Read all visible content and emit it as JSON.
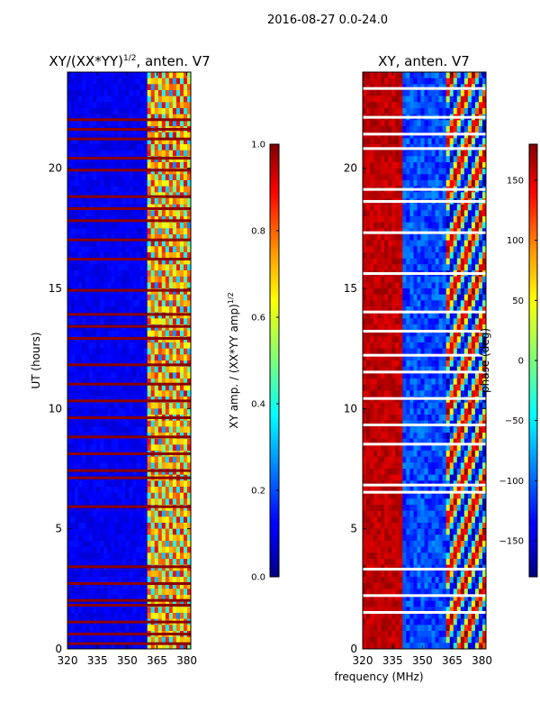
{
  "figure_title": "2016-08-27 0.0-24.0",
  "xlabel": "frequency (MHz)",
  "chart_data": [
    {
      "type": "heatmap",
      "title_main": "XY/(XX*YY)",
      "title_sup": "1/2",
      "title_rest": ", anten. V7",
      "ylabel": "UT (hours)",
      "xlim": [
        320,
        382
      ],
      "ylim": [
        0,
        24
      ],
      "x_ticks": [
        320,
        335,
        350,
        365,
        380
      ],
      "y_ticks": [
        0,
        5,
        10,
        15,
        20
      ],
      "colorbar": {
        "label_main": "XY amp. / (XX*YY amp)",
        "label_sup": "1/2",
        "range": [
          0.0,
          1.0
        ],
        "ticks": [
          "0.0",
          "0.2",
          "0.4",
          "0.6",
          "0.8",
          "1.0"
        ]
      },
      "flagged_hours": [
        0.2,
        0.6,
        1.1,
        1.8,
        2.0,
        2.7,
        3.4,
        5.9,
        7.1,
        7.4,
        8.1,
        8.8,
        9.6,
        10.3,
        11.0,
        11.8,
        12.9,
        13.4,
        13.9,
        14.9,
        16.2,
        17.0,
        17.8,
        18.3,
        18.8,
        19.9,
        20.4,
        21.2,
        21.6,
        22.0
      ],
      "description_values": {
        "low_band_mean": 0.08,
        "high_band_mean": 0.6
      }
    },
    {
      "type": "heatmap",
      "title_main": "XY, anten. V7",
      "ylabel": "",
      "xlim": [
        320,
        382
      ],
      "ylim": [
        0,
        24
      ],
      "x_ticks": [
        320,
        335,
        350,
        365,
        380
      ],
      "y_ticks": [
        0,
        5,
        10,
        15,
        20
      ],
      "colorbar": {
        "label_main": "phase (deg)",
        "range": [
          -180,
          180
        ],
        "ticks": [
          "−150",
          "−100",
          "−50",
          "0",
          "50",
          "100",
          "150"
        ]
      },
      "flagged_hours": [
        1.5,
        2.2,
        3.3,
        6.5,
        6.8,
        8.5,
        9.3,
        10.4,
        11.5,
        12.2,
        13.2,
        14.0,
        15.6,
        17.3,
        18.6,
        19.1,
        20.8,
        21.4,
        22.1,
        23.3
      ]
    }
  ]
}
